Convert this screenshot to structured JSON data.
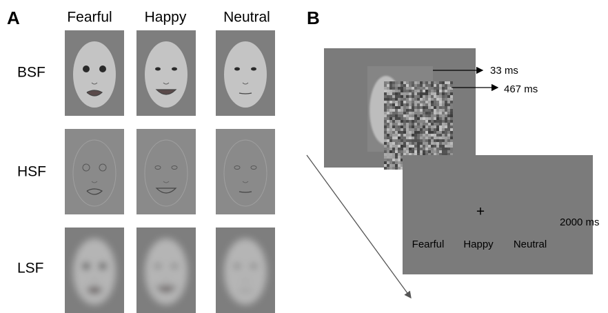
{
  "panel_a": {
    "label": "A",
    "columns": [
      "Fearful",
      "Happy",
      "Neutral"
    ],
    "rows": [
      "BSF",
      "HSF",
      "LSF"
    ]
  },
  "panel_b": {
    "label": "B",
    "timings": [
      "33 ms",
      "467 ms",
      "2000 ms"
    ],
    "fixation": "+",
    "options": [
      "Fearful",
      "Happy",
      "Neutral"
    ]
  }
}
